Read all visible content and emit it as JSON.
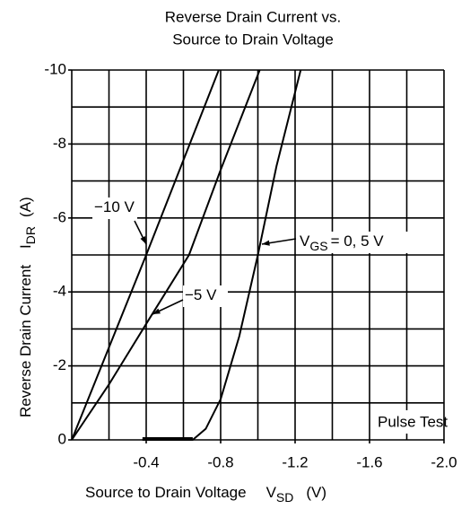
{
  "chart_data": {
    "type": "line",
    "title": [
      "Reverse Drain Current vs.",
      "Source to Drain Voltage"
    ],
    "xlabel": {
      "text": "Source to Drain Voltage",
      "symbol": "V",
      "subscript": "SD",
      "unit": "(V)"
    },
    "ylabel": {
      "text": "Reverse Drain Current",
      "symbol": "I",
      "subscript": "DR",
      "unit": "(A)"
    },
    "xlim": [
      0,
      -2.0
    ],
    "ylim": [
      0,
      -10
    ],
    "xticks": [
      -0.4,
      -0.8,
      -1.2,
      -1.6,
      {
        "value": -2,
        "label": "-2.0"
      }
    ],
    "yticks": [
      -10,
      -8,
      -6,
      -4,
      -2,
      0
    ],
    "xgrid": [
      -0.2,
      -0.4,
      -0.6,
      -0.8,
      -1.0,
      -1.2,
      -1.4,
      -1.6,
      -1.8,
      -2.0
    ],
    "ygrid": [
      -1,
      -2,
      -3,
      -4,
      -5,
      -6,
      -7,
      -8,
      -9,
      -10
    ],
    "grid": true,
    "annotation": "Pulse Test",
    "series": [
      {
        "label": {
          "text": "−10 V"
        },
        "color": "#000000",
        "x": [
          0,
          -0.4,
          -0.79
        ],
        "values": [
          0,
          -5,
          -10
        ]
      },
      {
        "label": {
          "text": "−5 V"
        },
        "color": "#000000",
        "x": [
          0,
          -0.2,
          -0.42,
          -0.63,
          -0.8,
          -1.01
        ],
        "values": [
          0,
          -1.5,
          -3.3,
          -5,
          -7.3,
          -10
        ]
      },
      {
        "label": {
          "text": "V",
          "subscript": "GS",
          "rest": "= 0, 5 V"
        },
        "color": "#000000",
        "x": [
          -0.38,
          -0.65,
          -0.72,
          -0.8,
          -0.9,
          -1.0,
          -1.1,
          -1.23
        ],
        "values": [
          0,
          0,
          -0.3,
          -1.1,
          -2.8,
          -5,
          -7.4,
          -10
        ]
      }
    ]
  }
}
